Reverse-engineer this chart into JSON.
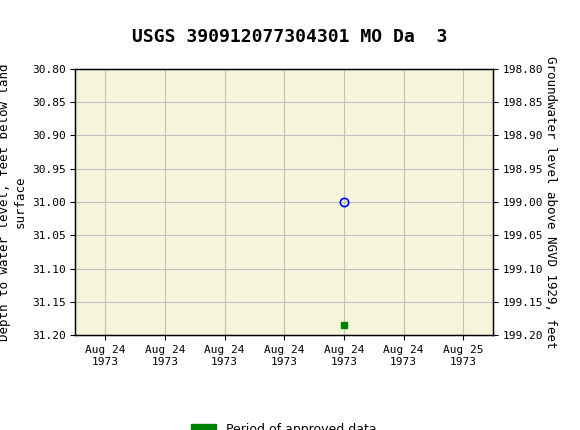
{
  "title": "USGS 390912077304301 MO Da  3",
  "left_ylabel": "Depth to water level, feet below land\nsurface",
  "right_ylabel": "Groundwater level above NGVD 1929, feet",
  "ylim_left": [
    30.8,
    31.2
  ],
  "ylim_right": [
    198.8,
    199.2
  ],
  "left_yticks": [
    30.8,
    30.85,
    30.9,
    30.95,
    31.0,
    31.05,
    31.1,
    31.15,
    31.2
  ],
  "right_yticks": [
    199.2,
    199.15,
    199.1,
    199.05,
    199.0,
    198.95,
    198.9,
    198.85,
    198.8
  ],
  "data_point_x": 4.0,
  "data_point_y": 31.0,
  "approved_marker_x": 4.0,
  "approved_marker_y": 31.185,
  "xtick_labels": [
    "Aug 24\n1973",
    "Aug 24\n1973",
    "Aug 24\n1973",
    "Aug 24\n1973",
    "Aug 24\n1973",
    "Aug 24\n1973",
    "Aug 25\n1973"
  ],
  "xtick_positions": [
    0,
    1,
    2,
    3,
    4,
    5,
    6
  ],
  "xlim": [
    -0.5,
    6.5
  ],
  "header_bg_color": "#1a6b3c",
  "plot_bg_color": "#f5f5dc",
  "grid_color": "#c0c0c0",
  "approved_color": "#008000",
  "circle_color": "#0000ff",
  "legend_label": "Period of approved data",
  "font_family": "monospace",
  "title_fontsize": 13,
  "axis_label_fontsize": 9,
  "tick_fontsize": 8
}
